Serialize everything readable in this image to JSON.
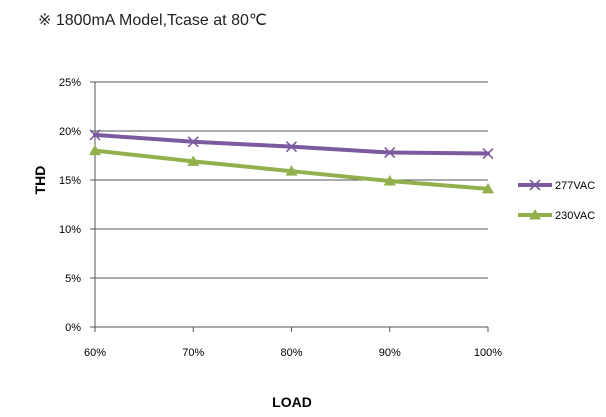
{
  "chart_data": {
    "type": "line",
    "title": "※ 1800mA Model,Tcase at 80℃",
    "xlabel": "LOAD",
    "ylabel": "THD",
    "categories": [
      "60%",
      "70%",
      "80%",
      "90%",
      "100%"
    ],
    "yticks": [
      "0%",
      "5%",
      "10%",
      "15%",
      "20%",
      "25%"
    ],
    "ylim": [
      0,
      25
    ],
    "grid": true,
    "legend_position": "right",
    "series": [
      {
        "name": "277VAC",
        "values": [
          19.6,
          18.9,
          18.4,
          17.8,
          17.7
        ],
        "color": "#7c5aa0",
        "marker": "x"
      },
      {
        "name": "230VAC",
        "values": [
          18.0,
          16.9,
          15.9,
          14.9,
          14.1
        ],
        "color": "#92b14c",
        "marker": "triangle"
      }
    ]
  }
}
